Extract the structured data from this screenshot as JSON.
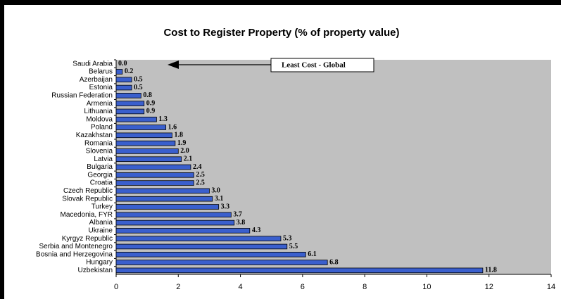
{
  "chart_data": {
    "type": "barh",
    "title": "Cost to Register Property (% of property value)",
    "categories": [
      "Saudi Arabia",
      "Belarus",
      "Azerbaijan",
      "Estonia",
      "Russian Federation",
      "Armenia",
      "Lithuania",
      "Moldova",
      "Poland",
      "Kazakhstan",
      "Romania",
      "Slovenia",
      "Latvia",
      "Bulgaria",
      "Georgia",
      "Croatia",
      "Czech Republic",
      "Slovak Republic",
      "Turkey",
      "Macedonia, FYR",
      "Albania",
      "Ukraine",
      "Kyrgyz Republic",
      "Serbia and Montenegro",
      "Bosnia and Herzegovina",
      "Hungary",
      "Uzbekistan"
    ],
    "values": [
      0,
      0.2,
      0.5,
      0.5,
      0.8,
      0.9,
      0.9,
      1.3,
      1.6,
      1.8,
      1.9,
      2,
      2.1,
      2.4,
      2.5,
      2.5,
      3,
      3.1,
      3.3,
      3.7,
      3.8,
      4.3,
      5.3,
      5.5,
      6.1,
      6.8,
      11.8
    ],
    "value_labels": [
      "0.0",
      "0.2",
      "0.5",
      "0.5",
      "0.8",
      "0.9",
      "0.9",
      "1.3",
      "1.6",
      "1.8",
      "1.9",
      "2.0",
      "2.1",
      "2.4",
      "2.5",
      "2.5",
      "3.0",
      "3.1",
      "3.3",
      "3.7",
      "3.8",
      "4.3",
      "5.3",
      "5.5",
      "6.1",
      "6.8",
      "11.8"
    ],
    "color": "#3a5fcd",
    "xlim": [
      0,
      14
    ],
    "xticks": [
      0,
      2,
      4,
      6,
      8,
      10,
      12,
      14
    ],
    "annotation": "Least Cost - Global"
  }
}
